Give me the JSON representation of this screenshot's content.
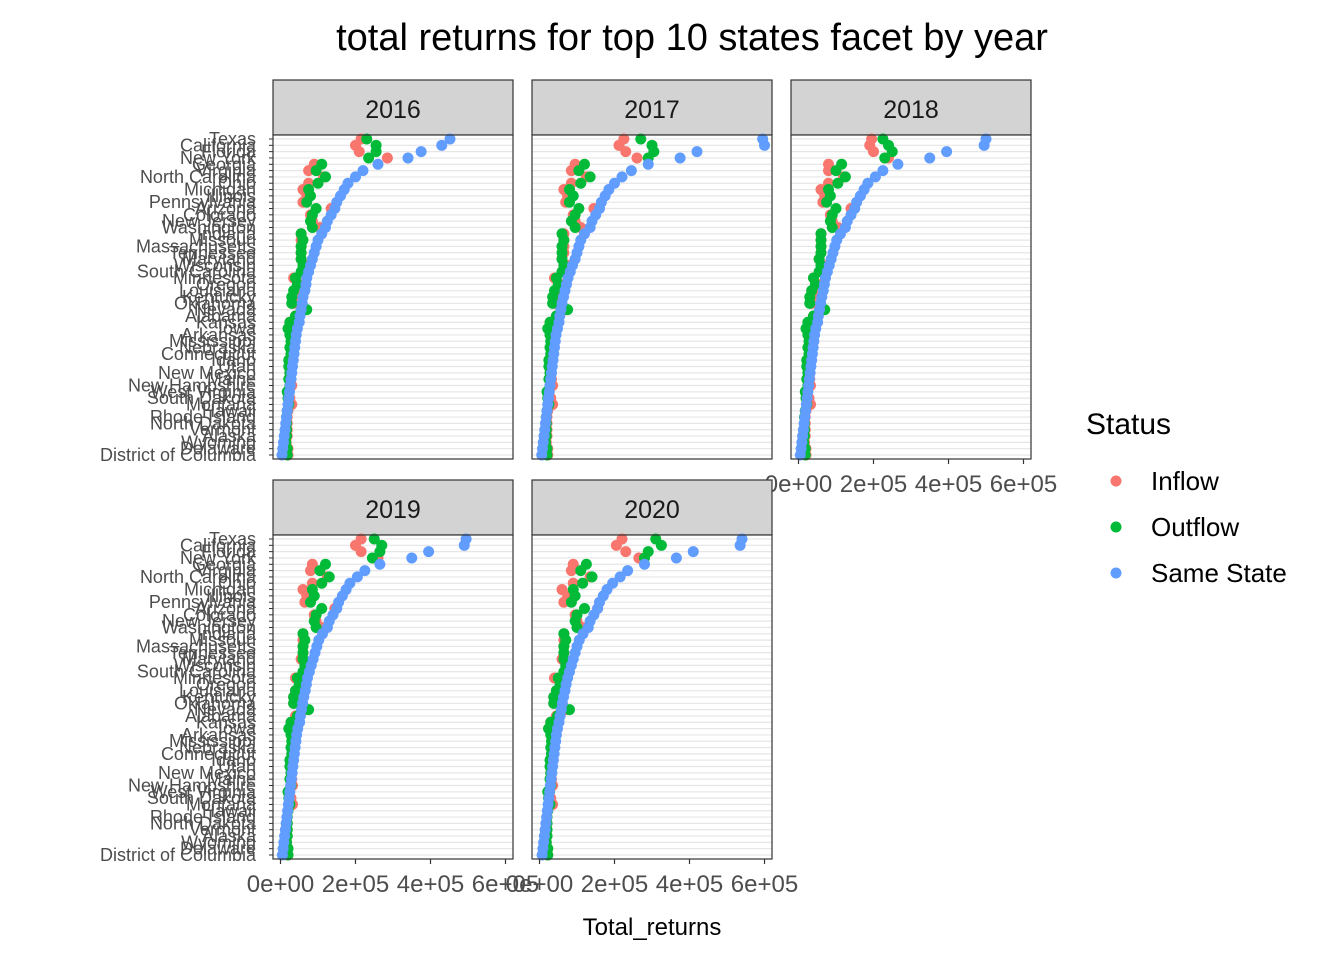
{
  "chart_data": {
    "type": "scatter",
    "title": "total returns for top 10 states facet by year",
    "xlabel": "Total_returns",
    "ylabel": "",
    "xlim": [
      -20000,
      620000
    ],
    "x_ticks": [
      0,
      200000,
      400000,
      600000
    ],
    "x_tick_labels": [
      "0e+00",
      "2e+05",
      "4e+05",
      "6e+05"
    ],
    "grid": true,
    "legend_position": "right",
    "legend_title": "Status",
    "colors": {
      "Inflow": "#F8766D",
      "Outflow": "#00BA38",
      "Same State": "#619CFF"
    },
    "facets": [
      "2016",
      "2017",
      "2018",
      "2019",
      "2020"
    ],
    "states": [
      "Texas",
      "California",
      "Florida",
      "New York",
      "Georgia",
      "Virginia",
      "North Carolina",
      "Ohio",
      "Michigan",
      "Illinois",
      "Pennsylvania",
      "Arizona",
      "Colorado",
      "New Jersey",
      "Washington",
      "Indiana",
      "Missouri",
      "Massachusetts",
      "Tennessee",
      "Maryland",
      "Wisconsin",
      "South Carolina",
      "Minnesota",
      "Oregon",
      "Louisiana",
      "Kentucky",
      "Oklahoma",
      "Nevada",
      "Alabama",
      "Kansas",
      "Iowa",
      "Arkansas",
      "Mississippi",
      "Nebraska",
      "Connecticut",
      "Idaho",
      "Utah",
      "New Mexico",
      "Maine",
      "New Hampshire",
      "West Virginia",
      "South Dakota",
      "Montana",
      "Hawaii",
      "Rhode Island",
      "North Dakota",
      "Vermont",
      "Alaska",
      "Wyoming",
      "Delaware",
      "District of Columbia"
    ],
    "series": [
      {
        "name": "Inflow",
        "values_by_year": {
          "2016": [
            215,
            200,
            210,
            285,
            90,
            75,
            115,
            75,
            60,
            70,
            60,
            135,
            80,
            85,
            105,
            55,
            55,
            55,
            55,
            55,
            70,
            65,
            35,
            60,
            40,
            35,
            35,
            60,
            40,
            25,
            22,
            30,
            30,
            28,
            30,
            25,
            28,
            25,
            28,
            30,
            22,
            25,
            30,
            20,
            18,
            18,
            18,
            18,
            15,
            20,
            20
          ],
          "2017": [
            225,
            212,
            230,
            260,
            95,
            85,
            125,
            85,
            65,
            75,
            70,
            145,
            90,
            95,
            110,
            65,
            65,
            65,
            65,
            60,
            80,
            70,
            40,
            65,
            45,
            40,
            40,
            70,
            45,
            30,
            25,
            35,
            35,
            32,
            35,
            30,
            32,
            30,
            32,
            35,
            25,
            30,
            35,
            22,
            20,
            20,
            20,
            20,
            18,
            22,
            22
          ],
          "2018": [
            195,
            190,
            200,
            240,
            80,
            80,
            120,
            80,
            60,
            70,
            65,
            140,
            85,
            90,
            105,
            60,
            60,
            60,
            60,
            55,
            75,
            65,
            40,
            60,
            40,
            35,
            35,
            65,
            40,
            28,
            24,
            32,
            32,
            30,
            32,
            28,
            30,
            28,
            30,
            32,
            24,
            28,
            32,
            20,
            18,
            18,
            18,
            18,
            16,
            20,
            20
          ],
          "2019": [
            215,
            200,
            215,
            260,
            85,
            80,
            125,
            85,
            60,
            70,
            65,
            145,
            90,
            95,
            110,
            60,
            60,
            60,
            60,
            55,
            75,
            65,
            40,
            60,
            40,
            35,
            35,
            65,
            40,
            28,
            24,
            32,
            32,
            30,
            32,
            28,
            30,
            28,
            30,
            32,
            24,
            28,
            32,
            20,
            18,
            18,
            18,
            18,
            16,
            20,
            20
          ],
          "2020": [
            220,
            205,
            230,
            265,
            90,
            85,
            135,
            90,
            60,
            75,
            65,
            155,
            95,
            100,
            115,
            65,
            65,
            65,
            65,
            60,
            80,
            70,
            40,
            65,
            45,
            38,
            38,
            70,
            45,
            30,
            26,
            34,
            34,
            32,
            34,
            30,
            32,
            30,
            32,
            35,
            26,
            30,
            35,
            22,
            20,
            20,
            20,
            20,
            18,
            22,
            22
          ]
        }
      },
      {
        "name": "Outflow",
        "values_by_year": {
          "2016": [
            230,
            255,
            255,
            235,
            110,
            95,
            120,
            100,
            75,
            80,
            70,
            95,
            85,
            80,
            85,
            55,
            60,
            55,
            55,
            55,
            60,
            55,
            40,
            45,
            35,
            30,
            30,
            70,
            40,
            25,
            20,
            25,
            28,
            25,
            28,
            22,
            22,
            25,
            22,
            25,
            18,
            20,
            22,
            18,
            16,
            16,
            16,
            16,
            14,
            18,
            18
          ],
          "2017": [
            270,
            300,
            305,
            290,
            120,
            105,
            135,
            110,
            80,
            90,
            80,
            105,
            95,
            85,
            95,
            60,
            65,
            60,
            60,
            60,
            65,
            60,
            45,
            50,
            40,
            35,
            35,
            75,
            45,
            28,
            22,
            28,
            30,
            28,
            30,
            25,
            25,
            28,
            25,
            28,
            20,
            22,
            25,
            20,
            18,
            18,
            18,
            18,
            16,
            20,
            20
          ],
          "2018": [
            225,
            240,
            250,
            230,
            115,
            100,
            125,
            105,
            80,
            85,
            75,
            100,
            90,
            85,
            90,
            60,
            60,
            60,
            60,
            55,
            60,
            55,
            40,
            45,
            35,
            30,
            30,
            70,
            40,
            25,
            20,
            25,
            28,
            25,
            28,
            22,
            22,
            25,
            22,
            25,
            18,
            20,
            22,
            18,
            16,
            16,
            16,
            16,
            14,
            18,
            18
          ],
          "2019": [
            250,
            270,
            265,
            245,
            120,
            105,
            130,
            110,
            85,
            90,
            80,
            110,
            95,
            90,
            95,
            60,
            65,
            60,
            60,
            60,
            65,
            60,
            45,
            50,
            40,
            35,
            35,
            75,
            45,
            28,
            22,
            28,
            30,
            28,
            30,
            25,
            25,
            28,
            25,
            28,
            20,
            22,
            25,
            20,
            18,
            18,
            18,
            18,
            16,
            20,
            20
          ],
          "2020": [
            310,
            325,
            290,
            280,
            125,
            110,
            140,
            115,
            90,
            95,
            85,
            120,
            100,
            95,
            100,
            65,
            70,
            65,
            65,
            65,
            70,
            65,
            50,
            55,
            45,
            38,
            38,
            80,
            48,
            30,
            24,
            30,
            32,
            30,
            32,
            28,
            28,
            30,
            28,
            30,
            22,
            24,
            28,
            22,
            20,
            20,
            20,
            20,
            18,
            22,
            22
          ]
        }
      },
      {
        "name": "Same State",
        "values_by_year": {
          "2016": [
            452,
            430,
            375,
            340,
            260,
            220,
            200,
            180,
            170,
            160,
            150,
            145,
            135,
            125,
            120,
            110,
            100,
            95,
            90,
            85,
            80,
            75,
            70,
            68,
            65,
            60,
            58,
            55,
            52,
            50,
            45,
            42,
            40,
            38,
            36,
            34,
            32,
            30,
            28,
            26,
            24,
            22,
            20,
            18,
            16,
            14,
            12,
            10,
            8,
            6,
            4
          ],
          "2017": [
            595,
            600,
            420,
            375,
            290,
            245,
            220,
            200,
            185,
            175,
            165,
            160,
            150,
            140,
            135,
            120,
            110,
            105,
            100,
            95,
            88,
            82,
            76,
            72,
            68,
            64,
            60,
            57,
            54,
            52,
            48,
            44,
            42,
            40,
            38,
            36,
            34,
            32,
            30,
            28,
            26,
            24,
            22,
            20,
            18,
            16,
            14,
            12,
            10,
            8,
            6
          ],
          "2018": [
            500,
            495,
            395,
            350,
            265,
            225,
            205,
            185,
            175,
            165,
            155,
            150,
            140,
            130,
            125,
            112,
            102,
            97,
            92,
            87,
            82,
            77,
            72,
            69,
            66,
            62,
            59,
            56,
            53,
            51,
            46,
            43,
            41,
            39,
            37,
            35,
            33,
            31,
            29,
            27,
            25,
            23,
            21,
            19,
            17,
            15,
            13,
            11,
            9,
            7,
            5
          ],
          "2019": [
            495,
            490,
            395,
            350,
            265,
            225,
            205,
            185,
            175,
            165,
            155,
            150,
            140,
            130,
            125,
            112,
            102,
            97,
            92,
            87,
            82,
            77,
            72,
            69,
            66,
            62,
            59,
            56,
            53,
            51,
            46,
            43,
            41,
            39,
            37,
            35,
            33,
            31,
            29,
            27,
            25,
            23,
            21,
            19,
            17,
            15,
            13,
            11,
            9,
            7,
            5
          ],
          "2020": [
            540,
            535,
            410,
            365,
            280,
            235,
            215,
            195,
            180,
            170,
            160,
            155,
            145,
            135,
            130,
            116,
            106,
            100,
            95,
            90,
            85,
            80,
            75,
            71,
            68,
            64,
            61,
            58,
            55,
            52,
            48,
            45,
            43,
            41,
            39,
            37,
            35,
            33,
            31,
            29,
            27,
            25,
            23,
            21,
            19,
            17,
            15,
            13,
            11,
            9,
            7
          ]
        }
      }
    ]
  }
}
